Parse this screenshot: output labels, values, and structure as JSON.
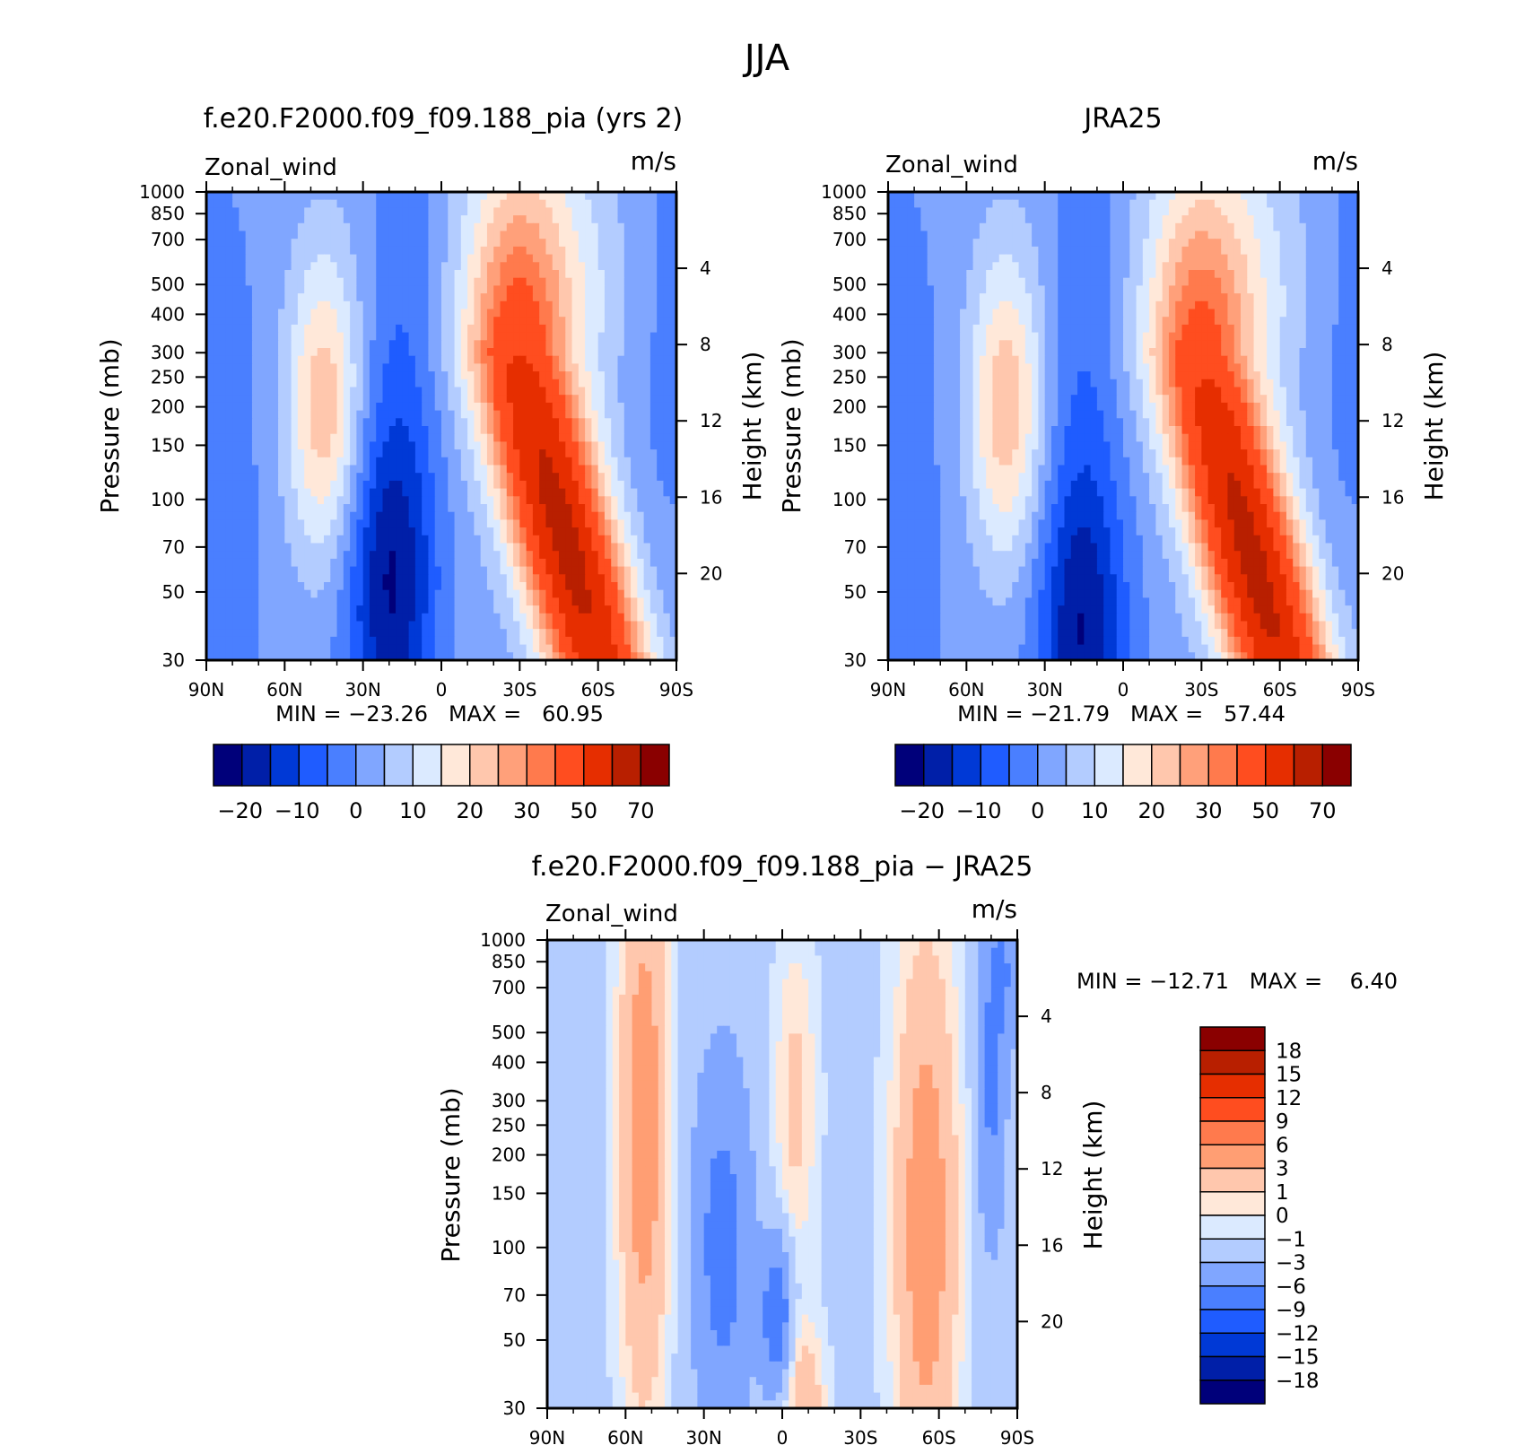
{
  "figure": {
    "title": "JJA"
  },
  "colors": {
    "full_field": [
      "#00007a",
      "#001fa8",
      "#0039d6",
      "#1f5cff",
      "#4a7fff",
      "#80a6ff",
      "#b3ccff",
      "#dbeaff",
      "#ffe8d9",
      "#ffc7ad",
      "#ffa07a",
      "#ff7a4d",
      "#ff4d1f",
      "#e62e00",
      "#b81f00",
      "#8a0000"
    ],
    "difference": [
      "#00007a",
      "#001fa8",
      "#0039d6",
      "#1f5cff",
      "#4a7fff",
      "#80a6ff",
      "#b3ccff",
      "#dbeaff",
      "#ffe8d9",
      "#ffc7ad",
      "#ff9e73",
      "#ff7a4d",
      "#ff4d1f",
      "#e62e00",
      "#b81f00",
      "#8a0000"
    ]
  },
  "chart_data": [
    {
      "id": "model",
      "type": "heatmap",
      "title": "f.e20.F2000.f09_f09.188_pia (yrs 2)",
      "variable_label": "Zonal_wind",
      "units_label": "m/s",
      "ylabel": "Pressure (mb)",
      "ylabel_right": "Height (km)",
      "x_ticks": [
        "90N",
        "60N",
        "30N",
        "0",
        "30S",
        "60S",
        "90S"
      ],
      "x_range": [
        90,
        -90
      ],
      "y_ticks": [
        "30",
        "50",
        "70",
        "100",
        "150",
        "200",
        "250",
        "300",
        "400",
        "500",
        "700",
        "850",
        "1000"
      ],
      "y_range_mb": [
        1000,
        30
      ],
      "y_scale": "log",
      "right_ticks": [
        "20",
        "16",
        "12",
        "8",
        "4"
      ],
      "stats": "MIN = −23.26   MAX =   60.95",
      "colorbar_labels": [
        "−20",
        "−10",
        "0",
        "10",
        "20",
        "30",
        "50",
        "70"
      ],
      "features": [
        {
          "lat": 20,
          "p": 55,
          "value": -23
        },
        {
          "lat": -57,
          "p": 45,
          "value": 58
        },
        {
          "lat": -28,
          "p": 200,
          "value": 61
        },
        {
          "lat": 46,
          "p": 200,
          "value": 22
        },
        {
          "lat": 8,
          "p": 650,
          "value": -12
        }
      ]
    },
    {
      "id": "obs",
      "type": "heatmap",
      "title": "JRA25",
      "variable_label": "Zonal_wind",
      "units_label": "m/s",
      "ylabel": "Pressure (mb)",
      "ylabel_right": "Height (km)",
      "x_ticks": [
        "90N",
        "60N",
        "30N",
        "0",
        "30S",
        "60S",
        "90S"
      ],
      "x_range": [
        90,
        -90
      ],
      "y_ticks": [
        "30",
        "50",
        "70",
        "100",
        "150",
        "200",
        "250",
        "300",
        "400",
        "500",
        "700",
        "850",
        "1000"
      ],
      "y_range_mb": [
        1000,
        30
      ],
      "y_scale": "log",
      "right_ticks": [
        "20",
        "16",
        "12",
        "8",
        "4"
      ],
      "stats": "MIN = −21.79   MAX =   57.44",
      "colorbar_labels": [
        "−20",
        "−10",
        "0",
        "10",
        "20",
        "30",
        "50",
        "70"
      ],
      "features": [
        {
          "lat": 15,
          "p": 35,
          "value": -22
        },
        {
          "lat": -59,
          "p": 40,
          "value": 56
        },
        {
          "lat": -28,
          "p": 200,
          "value": 57
        },
        {
          "lat": 44,
          "p": 200,
          "value": 22
        },
        {
          "lat": -5,
          "p": 900,
          "value": -12
        }
      ]
    },
    {
      "id": "diff",
      "type": "heatmap",
      "title": "f.e20.F2000.f09_f09.188_pia − JRA25",
      "variable_label": "Zonal_wind",
      "units_label": "m/s",
      "ylabel": "Pressure (mb)",
      "ylabel_right": "Height (km)",
      "x_ticks": [
        "90N",
        "60N",
        "30N",
        "0",
        "30S",
        "60S",
        "90S"
      ],
      "x_range": [
        90,
        -90
      ],
      "y_ticks": [
        "30",
        "50",
        "70",
        "100",
        "150",
        "200",
        "250",
        "300",
        "400",
        "500",
        "700",
        "850",
        "1000"
      ],
      "y_range_mb": [
        1000,
        30
      ],
      "y_scale": "log",
      "right_ticks": [
        "20",
        "16",
        "12",
        "8",
        "4"
      ],
      "stats": "MIN = −12.71   MAX =    6.40",
      "colorbar_labels": [
        "18",
        "15",
        "12",
        "9",
        "6",
        "3",
        "1",
        "0",
        "−1",
        "−3",
        "−6",
        "−9",
        "−12",
        "−15",
        "−18"
      ],
      "features": [
        {
          "lat": 53,
          "p": 250,
          "value": 5
        },
        {
          "lat": -5,
          "p": 250,
          "value": 2
        },
        {
          "lat": -50,
          "p": 100,
          "value": 6
        },
        {
          "lat": 2,
          "p": 60,
          "value": -8
        },
        {
          "lat": 23,
          "p": 100,
          "value": -6
        },
        {
          "lat": -80,
          "p": 300,
          "value": -5
        }
      ]
    }
  ]
}
